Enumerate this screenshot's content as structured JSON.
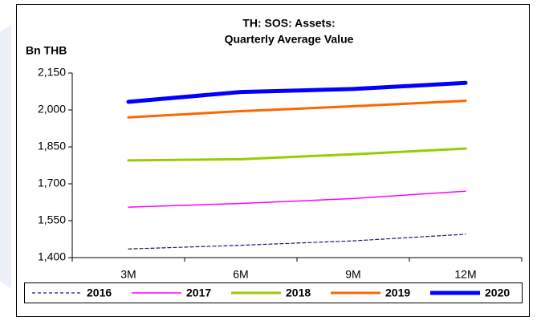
{
  "chart_data": {
    "type": "line",
    "title": [
      "TH: SOS: Assets:",
      "Quarterly Average Value"
    ],
    "y_label": "Bn THB",
    "categories": [
      "3M",
      "6M",
      "9M",
      "12M"
    ],
    "series": [
      {
        "name": "2016",
        "color": "#1a1a6e",
        "dashed": true,
        "linewidth": 1.2,
        "values": [
          1435,
          1450,
          1468,
          1495
        ]
      },
      {
        "name": "2017",
        "color": "#ff00ff",
        "dashed": false,
        "linewidth": 1.5,
        "values": [
          1605,
          1620,
          1640,
          1670
        ]
      },
      {
        "name": "2018",
        "color": "#99cc00",
        "dashed": false,
        "linewidth": 3,
        "values": [
          1795,
          1800,
          1820,
          1843
        ]
      },
      {
        "name": "2019",
        "color": "#ff6600",
        "dashed": false,
        "linewidth": 3,
        "values": [
          1970,
          1995,
          2015,
          2037
        ]
      },
      {
        "name": "2020",
        "color": "#0000ff",
        "dashed": false,
        "linewidth": 5,
        "values": [
          2033,
          2073,
          2085,
          2110
        ]
      }
    ],
    "ylim": [
      1400,
      2150
    ],
    "yticks": [
      {
        "value": 1400,
        "label": "1,400"
      },
      {
        "value": 1550,
        "label": "1,550"
      },
      {
        "value": 1700,
        "label": "1,700"
      },
      {
        "value": 1850,
        "label": "1,850"
      },
      {
        "value": 2000,
        "label": "2,000"
      },
      {
        "value": 2150,
        "label": "2,150"
      }
    ],
    "grid": false,
    "legend": "bottom"
  }
}
